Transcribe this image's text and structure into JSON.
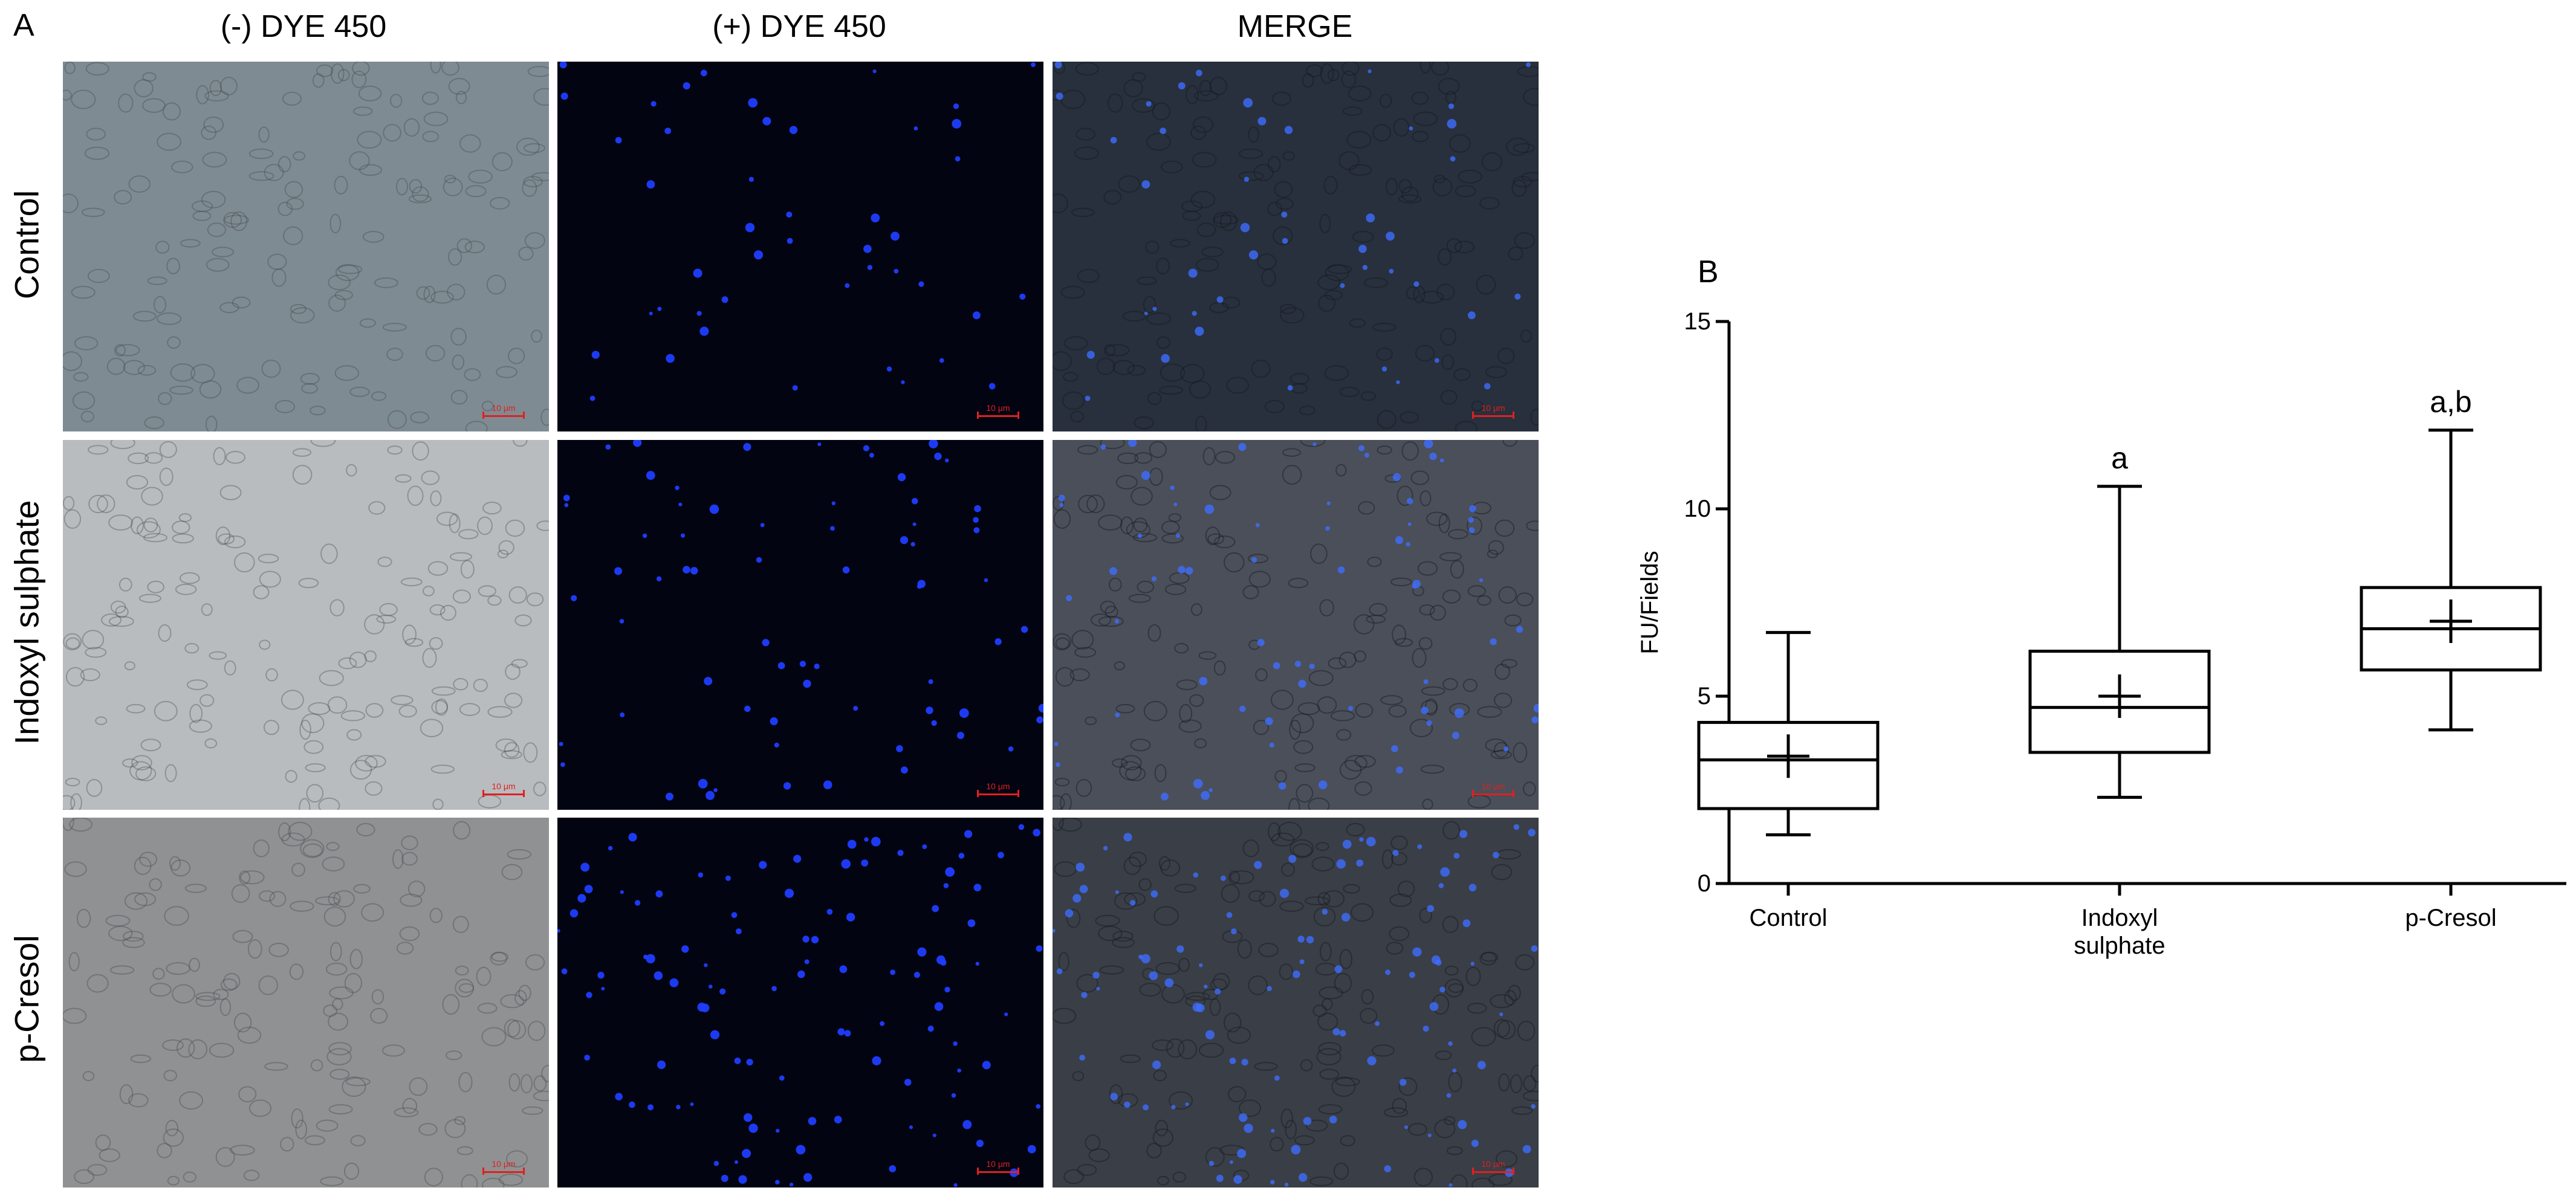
{
  "panel_a": {
    "label": "A",
    "columns": [
      "(-) DYE 450",
      "(+) DYE 450",
      "MERGE"
    ],
    "rows": [
      "Control",
      "Indoxyl sulphate",
      "p-Cresol"
    ],
    "scale_bar_label": "10 μm",
    "colors": {
      "brightfield": "#8a949a",
      "fluorescence_bg": "#020412",
      "nuclei": "#1f3dff",
      "scale_bar": "#e02020"
    }
  },
  "panel_b": {
    "label": "B"
  },
  "chart_data": {
    "type": "box",
    "title": "",
    "xlabel": "",
    "ylabel": "FU/Fields",
    "ylim": [
      0,
      15
    ],
    "yticks": [
      0,
      5,
      10,
      15
    ],
    "categories": [
      "Control",
      "Indoxyl\nsulphate",
      "p-Cresol"
    ],
    "boxes": [
      {
        "category": "Control",
        "min": 1.3,
        "q1": 2.0,
        "median": 3.3,
        "q3": 4.3,
        "max": 6.7,
        "mean": 3.4,
        "annotation": ""
      },
      {
        "category": "Indoxyl sulphate",
        "min": 2.3,
        "q1": 3.5,
        "median": 4.7,
        "q3": 6.2,
        "max": 10.6,
        "mean": 5.0,
        "annotation": "a"
      },
      {
        "category": "p-Cresol",
        "min": 4.1,
        "q1": 5.7,
        "median": 6.8,
        "q3": 7.9,
        "max": 12.1,
        "mean": 7.0,
        "annotation": "a,b"
      }
    ],
    "grid": false,
    "legend": "none"
  }
}
